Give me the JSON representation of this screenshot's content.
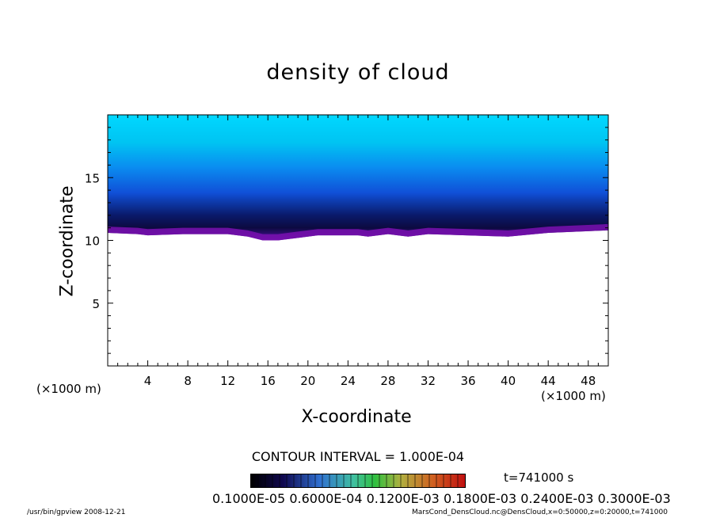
{
  "chart_data": {
    "type": "heatmap",
    "title": "density of cloud",
    "xlabel": "X-coordinate",
    "ylabel": "Z-coordinate",
    "x_unit_left": "(×1000 m)",
    "x_unit_right": "(×1000 m)",
    "xlim": [
      0,
      50
    ],
    "ylim": [
      0,
      20
    ],
    "x_ticks": [
      4,
      8,
      12,
      16,
      20,
      24,
      28,
      32,
      36,
      40,
      44,
      48
    ],
    "y_ticks": [
      5,
      10,
      15
    ],
    "cloud_base": [
      {
        "x": 0,
        "z": 10.6
      },
      {
        "x": 3,
        "z": 10.5
      },
      {
        "x": 4,
        "z": 10.4
      },
      {
        "x": 7.5,
        "z": 10.5
      },
      {
        "x": 12,
        "z": 10.5
      },
      {
        "x": 14,
        "z": 10.3
      },
      {
        "x": 15.5,
        "z": 10.0
      },
      {
        "x": 17,
        "z": 10.0
      },
      {
        "x": 19,
        "z": 10.2
      },
      {
        "x": 21,
        "z": 10.4
      },
      {
        "x": 25,
        "z": 10.4
      },
      {
        "x": 26,
        "z": 10.3
      },
      {
        "x": 28,
        "z": 10.5
      },
      {
        "x": 30,
        "z": 10.3
      },
      {
        "x": 32,
        "z": 10.5
      },
      {
        "x": 40,
        "z": 10.3
      },
      {
        "x": 44,
        "z": 10.6
      },
      {
        "x": 50,
        "z": 10.8
      }
    ],
    "contour_interval": "CONTOUR INTERVAL = 1.000E-04",
    "time_label": "t=741000 s",
    "colorbar_labels": "0.1000E-05 0.6000E-04 0.1200E-03 0.1800E-03 0.2400E-03 0.3000E-03"
  },
  "colors": {
    "dark_band": "#0a1a55",
    "mid_blue": "#1060f0",
    "upper_blue": "#00c0f0",
    "base_purple": "#7a10b0"
  },
  "footer": {
    "left": "/usr/bin/gpview   2008-12-21",
    "right": "MarsCond_DensCloud.nc@DensCloud,x=0:50000,z=0:20000,t=741000"
  }
}
